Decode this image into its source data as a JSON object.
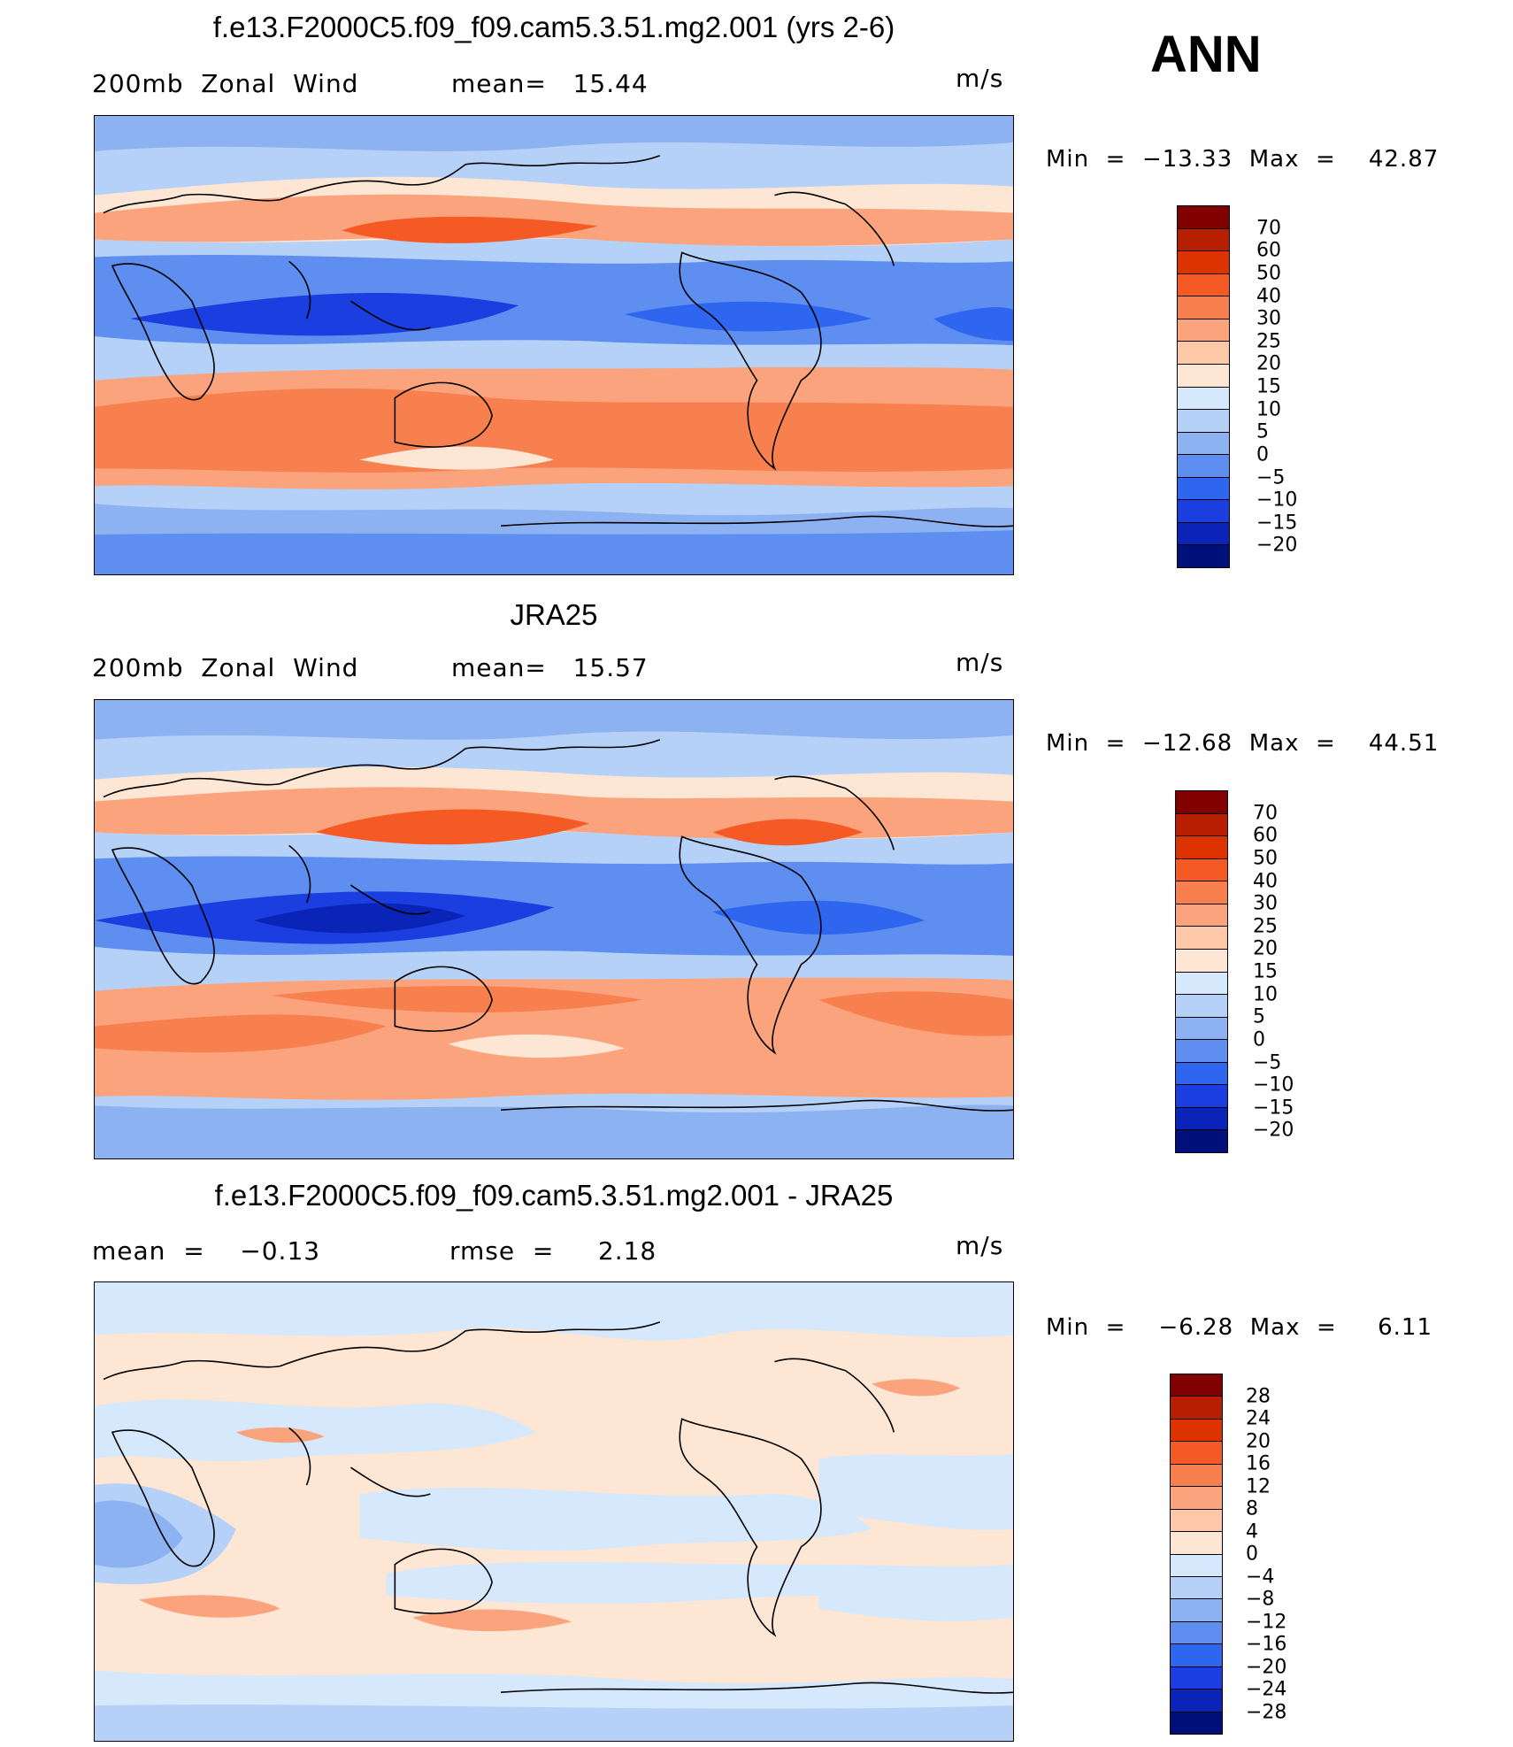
{
  "header": {
    "season": "ANN"
  },
  "panels": [
    {
      "title": "f.e13.F2000C5.f09_f09.cam5.3.51.mg2.001 (yrs 2-6)",
      "left_label": "200mb  Zonal  Wind",
      "center_label": "mean=   15.44",
      "units": "m/s",
      "minmax": "Min  =  −13.33  Max  =    42.87",
      "colorbar_labels": [
        "70",
        "60",
        "50",
        "40",
        "30",
        "25",
        "20",
        "15",
        "10",
        "5",
        "0",
        "−5",
        "−10",
        "−15",
        "−20"
      ]
    },
    {
      "title": "JRA25",
      "left_label": "200mb  Zonal  Wind",
      "center_label": "mean=   15.57",
      "units": "m/s",
      "minmax": "Min  =  −12.68  Max  =    44.51",
      "colorbar_labels": [
        "70",
        "60",
        "50",
        "40",
        "30",
        "25",
        "20",
        "15",
        "10",
        "5",
        "0",
        "−5",
        "−10",
        "−15",
        "−20"
      ]
    },
    {
      "title": "f.e13.F2000C5.f09_f09.cam5.3.51.mg2.001 - JRA25",
      "left_label": "mean  =    −0.13",
      "center_label": "rmse  =     2.18",
      "units": "m/s",
      "minmax": "Min  =    −6.28  Max  =     6.11",
      "colorbar_labels": [
        "28",
        "24",
        "20",
        "16",
        "12",
        "8",
        "4",
        "0",
        "−4",
        "−8",
        "−12",
        "−16",
        "−20",
        "−24",
        "−28"
      ]
    }
  ],
  "colors": {
    "wind_scale": [
      "#800000",
      "#b81e00",
      "#dd3300",
      "#f55a24",
      "#f8804e",
      "#fba37c",
      "#fdc8a8",
      "#fde6d4",
      "#d6e8fb",
      "#b6d1f8",
      "#8db2f2",
      "#5e8ef0",
      "#2f66f0",
      "#1a3ee0",
      "#0b24b8",
      "#00107a"
    ],
    "diff_scale": [
      "#800000",
      "#b81e00",
      "#dd3300",
      "#f55a24",
      "#f8804e",
      "#fba37c",
      "#fdc8a8",
      "#fde6d4",
      "#d6e8fb",
      "#b6d1f8",
      "#8db2f2",
      "#5e8ef0",
      "#2f66f0",
      "#1a3ee0",
      "#0b24b8",
      "#00107a"
    ]
  }
}
